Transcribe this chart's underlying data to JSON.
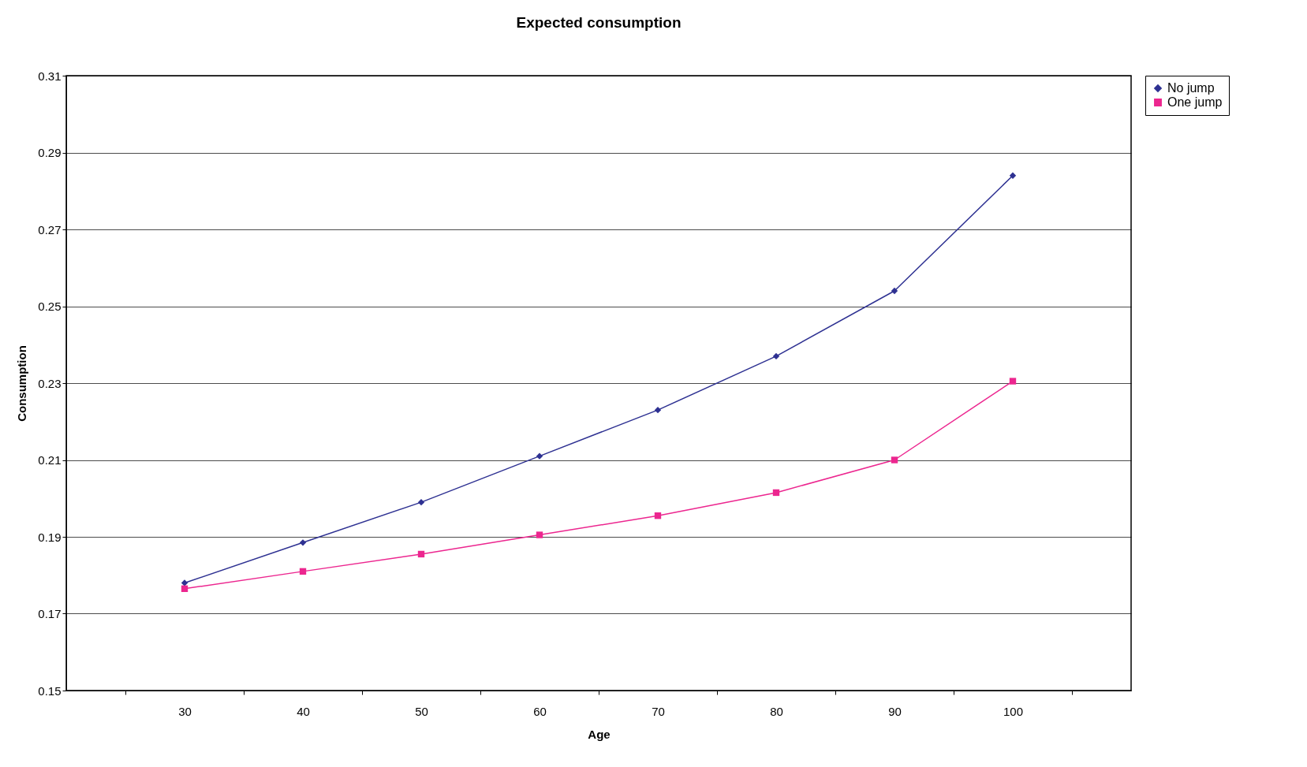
{
  "chart_data": {
    "type": "line",
    "title": "Expected consumption",
    "xlabel": "Age",
    "ylabel": "Consumption",
    "categories": [
      "30",
      "40",
      "50",
      "60",
      "70",
      "80",
      "90",
      "100"
    ],
    "series": [
      {
        "name": "No jump",
        "color": "#2e3192",
        "marker": "diamond",
        "values": [
          0.178,
          0.1885,
          0.199,
          0.211,
          0.223,
          0.237,
          0.254,
          0.284
        ]
      },
      {
        "name": "One jump",
        "color": "#ec268f",
        "marker": "square",
        "values": [
          0.1765,
          0.181,
          0.1855,
          0.1905,
          0.1955,
          0.2015,
          0.21,
          0.2305
        ]
      }
    ],
    "ylim": [
      0.15,
      0.31
    ],
    "yticks": [
      0.15,
      0.17,
      0.19,
      0.21,
      0.23,
      0.25,
      0.27,
      0.29,
      0.31
    ],
    "grid": "y",
    "legend": "right"
  }
}
